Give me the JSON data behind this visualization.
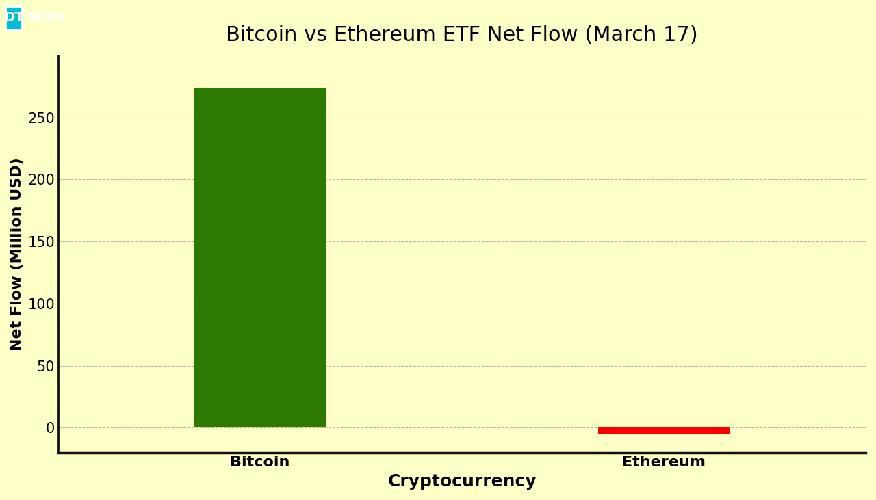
{
  "title": "Bitcoin vs Ethereum ETF Net Flow (March 17)",
  "categories": [
    "Bitcoin",
    "Ethereum"
  ],
  "values": [
    274,
    -5
  ],
  "bar_colors": [
    "#2d7a00",
    "#ff0000"
  ],
  "xlabel": "Cryptocurrency",
  "ylabel": "Net Flow (Million USD)",
  "background_color": "#ffffc8",
  "plot_bg_color": "#ffffc8",
  "ylim_min": -20,
  "ylim_max": 300,
  "yticks": [
    0,
    50,
    100,
    150,
    200,
    250
  ],
  "grid_color": "#888888",
  "title_fontsize": 22,
  "axis_label_fontsize": 16,
  "tick_fontsize": 14,
  "logo_bg_color": "#00bcd4",
  "logo_text_dt": "DT",
  "logo_text_news": "NEWS",
  "bar_width": 0.65,
  "x_positions": [
    1,
    3
  ],
  "xlim": [
    0,
    4
  ]
}
